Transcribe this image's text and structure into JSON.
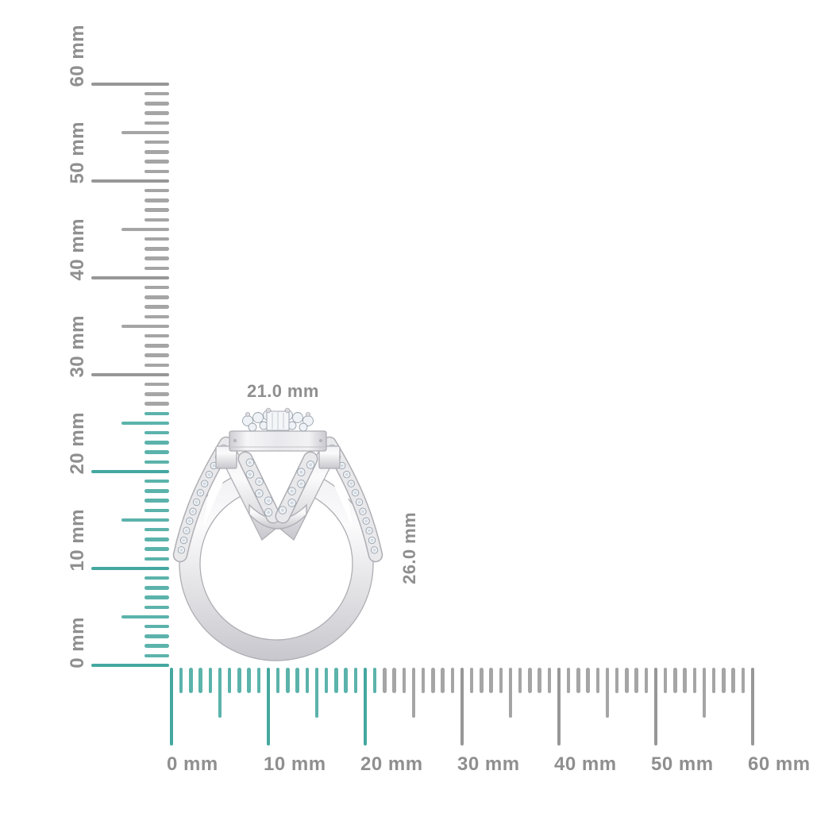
{
  "background": "#ffffff",
  "colors": {
    "tick_teal": "#5bb3ab",
    "tick_teal_major": "#44a8a0",
    "tick_gray": "#a5a5a5",
    "tick_gray_major": "#979797",
    "ruler_label": "#8f8f8f",
    "dimension_label": "#8f8f8f",
    "metal_edge": "#aeaeb4"
  },
  "product": {
    "description": "halo diamond ring, side profile view",
    "width_label": "21.0 mm",
    "height_label": "26.0 mm"
  },
  "rulers": {
    "unit": "mm",
    "horizontal": {
      "min_mm": 0,
      "max_mm": 60,
      "minor_step_mm": 1,
      "mid_step_mm": 5,
      "major_step_mm": 10,
      "highlighted_span_mm": 21,
      "labels": [
        "0 mm",
        "10 mm",
        "20 mm",
        "30 mm",
        "40 mm",
        "50 mm",
        "60 mm"
      ]
    },
    "vertical": {
      "min_mm": 0,
      "max_mm": 60,
      "minor_step_mm": 1,
      "mid_step_mm": 5,
      "major_step_mm": 10,
      "highlighted_span_mm": 26,
      "labels": [
        "0 mm",
        "10 mm",
        "20 mm",
        "30 mm",
        "40 mm",
        "50 mm",
        "60 mm"
      ]
    }
  }
}
